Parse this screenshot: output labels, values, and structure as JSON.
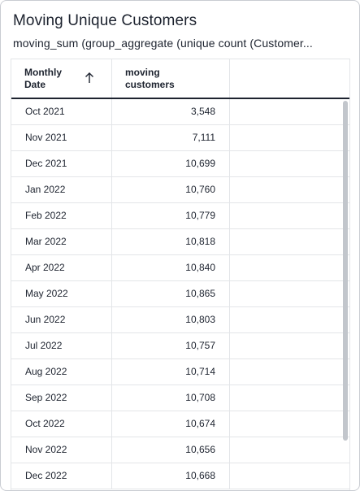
{
  "card": {
    "title": "Moving Unique Customers",
    "subtitle": "moving_sum (group_aggregate (unique count (Customer..."
  },
  "table": {
    "columns": [
      {
        "line1": "Monthly",
        "line2": "Date",
        "sort": "ascending"
      },
      {
        "line1": "moving",
        "line2": "customers"
      }
    ],
    "rows": [
      {
        "date": "Oct 2021",
        "value": "3,548"
      },
      {
        "date": "Nov 2021",
        "value": "7,111"
      },
      {
        "date": "Dec 2021",
        "value": "10,699"
      },
      {
        "date": "Jan 2022",
        "value": "10,760"
      },
      {
        "date": "Feb 2022",
        "value": "10,779"
      },
      {
        "date": "Mar 2022",
        "value": "10,818"
      },
      {
        "date": "Apr 2022",
        "value": "10,840"
      },
      {
        "date": "May 2022",
        "value": "10,865"
      },
      {
        "date": "Jun 2022",
        "value": "10,803"
      },
      {
        "date": "Jul 2022",
        "value": "10,757"
      },
      {
        "date": "Aug 2022",
        "value": "10,714"
      },
      {
        "date": "Sep 2022",
        "value": "10,708"
      },
      {
        "date": "Oct 2022",
        "value": "10,674"
      },
      {
        "date": "Nov 2022",
        "value": "10,656"
      },
      {
        "date": "Dec 2022",
        "value": "10,668"
      }
    ]
  },
  "icons": {
    "sort": "arrow-up-icon"
  },
  "colors": {
    "text": "#1d232f",
    "border": "#e3e5e8",
    "scrollbar": "#c2c6cc"
  }
}
